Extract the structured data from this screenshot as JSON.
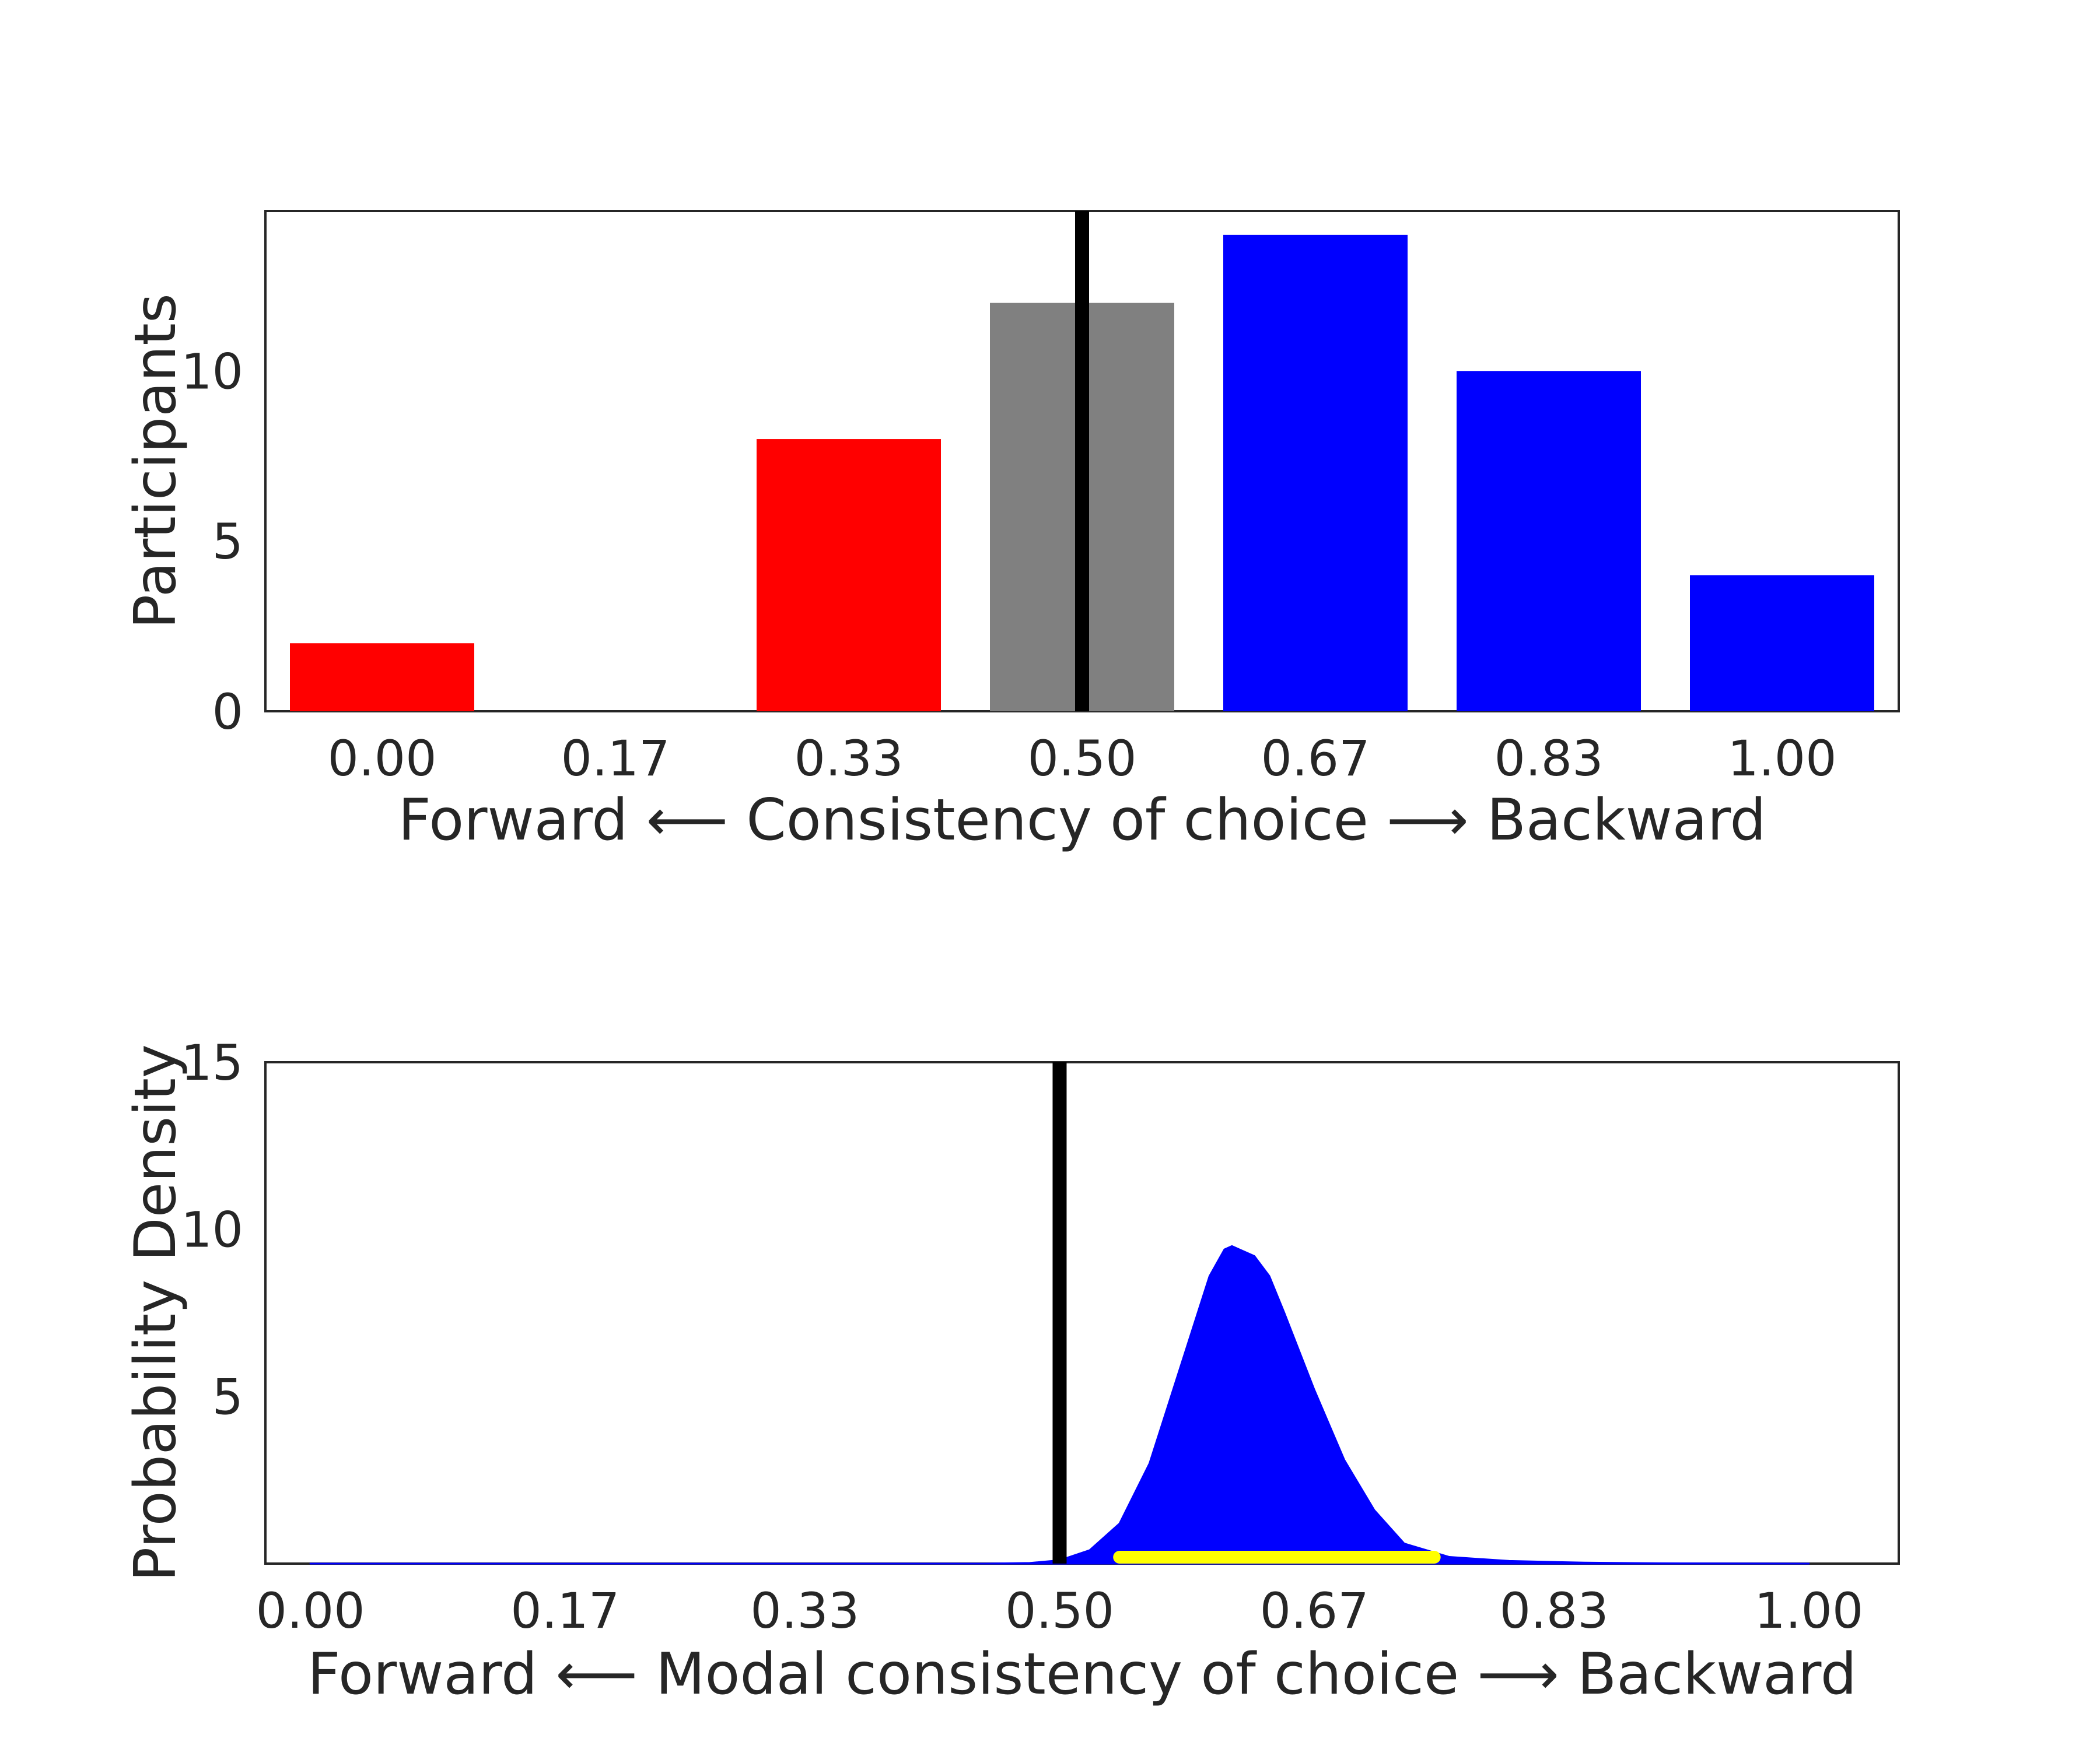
{
  "chart_data": [
    {
      "type": "bar",
      "categories": [
        "0.00",
        "0.17",
        "0.33",
        "0.50",
        "0.67",
        "0.83",
        "1.00"
      ],
      "x": [
        0.0,
        0.17,
        0.33,
        0.5,
        0.67,
        0.83,
        1.0
      ],
      "values": [
        2,
        0,
        8,
        12,
        14,
        10,
        4
      ],
      "bar_colors": [
        "#ff0000",
        "#ff0000",
        "#ff0000",
        "#808080",
        "#0000ff",
        "#0000ff",
        "#0000ff"
      ],
      "xlabel": "Forward ⟵ Consistency of choice ⟶ Backward",
      "ylabel": "Participants",
      "yticks": [
        0,
        5,
        10
      ],
      "ylim": [
        0,
        14.7
      ],
      "reference_line_x": 0.5,
      "reference_line_color": "#000000",
      "grid": false
    },
    {
      "type": "area",
      "x": [
        0.0,
        0.17,
        0.33,
        0.45,
        0.48,
        0.5,
        0.52,
        0.54,
        0.56,
        0.58,
        0.6,
        0.61,
        0.615,
        0.62,
        0.63,
        0.64,
        0.65,
        0.67,
        0.69,
        0.71,
        0.73,
        0.76,
        0.8,
        0.85,
        0.9,
        1.0
      ],
      "y": [
        0,
        0,
        0,
        0,
        0.02,
        0.1,
        0.4,
        1.2,
        3.0,
        5.8,
        8.6,
        9.4,
        9.5,
        9.4,
        9.2,
        8.6,
        7.5,
        5.2,
        3.1,
        1.6,
        0.6,
        0.2,
        0.08,
        0.03,
        0.01,
        0
      ],
      "fill_color": "#0000ff",
      "interval": [
        0.54,
        0.75
      ],
      "interval_color": "#ffff00",
      "xticks": [
        0.0,
        0.17,
        0.33,
        0.5,
        0.67,
        0.83,
        1.0
      ],
      "xticklabels": [
        "0.00",
        "0.17",
        "0.33",
        "0.50",
        "0.67",
        "0.83",
        "1.00"
      ],
      "xlim": [
        -0.03,
        1.06
      ],
      "yticks": [
        5,
        10,
        15
      ],
      "ylim": [
        0,
        15
      ],
      "xlabel": "Forward ⟵ Modal consistency of choice ⟶ Backward",
      "ylabel": "Probability Density",
      "reference_line_x": 0.5,
      "reference_line_color": "#000000",
      "grid": false
    }
  ]
}
